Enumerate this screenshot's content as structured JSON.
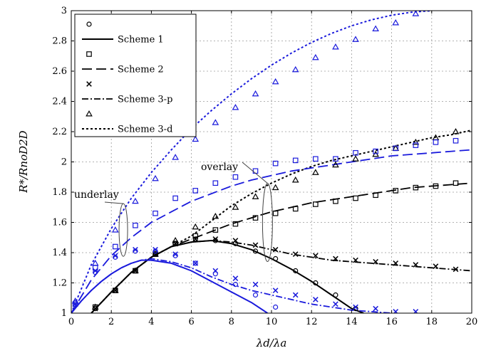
{
  "chart_data": {
    "type": "line",
    "xlabel": "λd/λa",
    "ylabel": "R*/RnoD2D",
    "xlim": [
      0,
      20
    ],
    "ylim": [
      1,
      3
    ],
    "xticks": [
      0,
      2,
      4,
      6,
      8,
      10,
      12,
      14,
      16,
      18,
      20
    ],
    "yticks": [
      1,
      1.2,
      1.4,
      1.6,
      1.8,
      2,
      2.2,
      2.4,
      2.6,
      2.8,
      3
    ],
    "ytick_labels": [
      "1",
      "1.2",
      "1.4",
      "1.6",
      "1.8",
      "2",
      "2.2",
      "2.4",
      "2.6",
      "2.8",
      "3"
    ],
    "grid": true,
    "legend_position": "top-left",
    "legend": [
      {
        "label": "Scheme 1",
        "marker": "circle",
        "line": "solid"
      },
      {
        "label": "Scheme 2",
        "marker": "square",
        "line": "long-dash"
      },
      {
        "label": "Scheme 3-p",
        "marker": "x",
        "line": "dash-dot"
      },
      {
        "label": "Scheme 3-d",
        "marker": "triangle",
        "line": "dotted"
      }
    ],
    "annotations": [
      {
        "text": "underlay",
        "target": [
          2.6,
          1.55
        ]
      },
      {
        "text": "overlay",
        "target": [
          9.8,
          1.6
        ]
      }
    ],
    "colors": {
      "overlay": "#000000",
      "underlay": "#1a1adc"
    },
    "series": [
      {
        "group": "overlay",
        "scheme": "Scheme 1",
        "curve": [
          [
            1,
            1.0
          ],
          [
            2,
            1.14
          ],
          [
            3,
            1.27
          ],
          [
            4,
            1.37
          ],
          [
            5,
            1.44
          ],
          [
            6,
            1.47
          ],
          [
            7,
            1.48
          ],
          [
            8,
            1.46
          ],
          [
            9,
            1.42
          ],
          [
            10,
            1.36
          ],
          [
            11,
            1.29
          ],
          [
            12,
            1.21
          ],
          [
            13,
            1.12
          ],
          [
            14,
            1.03
          ],
          [
            14.6,
            1.0
          ]
        ],
        "points": [
          [
            1.2,
            1.03
          ],
          [
            2.2,
            1.15
          ],
          [
            3.2,
            1.28
          ],
          [
            4.2,
            1.39
          ],
          [
            5.2,
            1.46
          ],
          [
            6.2,
            1.49
          ],
          [
            7.2,
            1.48
          ],
          [
            8.2,
            1.46
          ],
          [
            9.2,
            1.41
          ],
          [
            10.2,
            1.36
          ],
          [
            11.2,
            1.28
          ],
          [
            12.2,
            1.2
          ],
          [
            13.2,
            1.12
          ],
          [
            14.2,
            1.03
          ]
        ]
      },
      {
        "group": "overlay",
        "scheme": "Scheme 2",
        "curve": [
          [
            1,
            1.0
          ],
          [
            2,
            1.14
          ],
          [
            3,
            1.27
          ],
          [
            4,
            1.37
          ],
          [
            5,
            1.44
          ],
          [
            6,
            1.49
          ],
          [
            7,
            1.54
          ],
          [
            8,
            1.59
          ],
          [
            9,
            1.63
          ],
          [
            10,
            1.67
          ],
          [
            11,
            1.7
          ],
          [
            12,
            1.73
          ],
          [
            13,
            1.75
          ],
          [
            14,
            1.77
          ],
          [
            15,
            1.79
          ],
          [
            16,
            1.81
          ],
          [
            17,
            1.83
          ],
          [
            18,
            1.84
          ],
          [
            19,
            1.85
          ],
          [
            20,
            1.86
          ]
        ],
        "points": [
          [
            1.2,
            1.04
          ],
          [
            2.2,
            1.15
          ],
          [
            3.2,
            1.28
          ],
          [
            4.2,
            1.39
          ],
          [
            5.2,
            1.46
          ],
          [
            6.2,
            1.51
          ],
          [
            7.2,
            1.55
          ],
          [
            8.2,
            1.59
          ],
          [
            9.2,
            1.63
          ],
          [
            10.2,
            1.66
          ],
          [
            11.2,
            1.69
          ],
          [
            12.2,
            1.72
          ],
          [
            13.2,
            1.74
          ],
          [
            14.2,
            1.76
          ],
          [
            15.2,
            1.78
          ],
          [
            16.2,
            1.81
          ],
          [
            17.2,
            1.83
          ],
          [
            18.2,
            1.84
          ],
          [
            19.2,
            1.86
          ]
        ]
      },
      {
        "group": "overlay",
        "scheme": "Scheme 3-p",
        "curve": [
          [
            1,
            1.0
          ],
          [
            2,
            1.14
          ],
          [
            3,
            1.27
          ],
          [
            4,
            1.37
          ],
          [
            5,
            1.44
          ],
          [
            6,
            1.47
          ],
          [
            7,
            1.48
          ],
          [
            8,
            1.47
          ],
          [
            9,
            1.45
          ],
          [
            10,
            1.42
          ],
          [
            11,
            1.39
          ],
          [
            12,
            1.37
          ],
          [
            13,
            1.35
          ],
          [
            14,
            1.34
          ],
          [
            15,
            1.33
          ],
          [
            16,
            1.32
          ],
          [
            17,
            1.31
          ],
          [
            18,
            1.3
          ],
          [
            19,
            1.29
          ],
          [
            20,
            1.28
          ]
        ],
        "points": [
          [
            1.2,
            1.03
          ],
          [
            2.2,
            1.15
          ],
          [
            3.2,
            1.28
          ],
          [
            4.2,
            1.39
          ],
          [
            5.2,
            1.46
          ],
          [
            6.2,
            1.49
          ],
          [
            7.2,
            1.49
          ],
          [
            8.2,
            1.48
          ],
          [
            9.2,
            1.45
          ],
          [
            10.2,
            1.42
          ],
          [
            11.2,
            1.39
          ],
          [
            12.2,
            1.38
          ],
          [
            13.2,
            1.36
          ],
          [
            14.2,
            1.35
          ],
          [
            15.2,
            1.34
          ],
          [
            16.2,
            1.33
          ],
          [
            17.2,
            1.32
          ],
          [
            18.2,
            1.31
          ],
          [
            19.2,
            1.29
          ]
        ]
      },
      {
        "group": "overlay",
        "scheme": "Scheme 3-d",
        "curve": [
          [
            1,
            1.0
          ],
          [
            2,
            1.14
          ],
          [
            3,
            1.27
          ],
          [
            4,
            1.37
          ],
          [
            5,
            1.44
          ],
          [
            6,
            1.51
          ],
          [
            7,
            1.61
          ],
          [
            8,
            1.71
          ],
          [
            9,
            1.79
          ],
          [
            10,
            1.86
          ],
          [
            11,
            1.92
          ],
          [
            12,
            1.97
          ],
          [
            13,
            2.01
          ],
          [
            14,
            2.04
          ],
          [
            15,
            2.07
          ],
          [
            16,
            2.1
          ],
          [
            17,
            2.13
          ],
          [
            18,
            2.16
          ],
          [
            19,
            2.18
          ],
          [
            20,
            2.21
          ]
        ],
        "points": [
          [
            1.2,
            1.04
          ],
          [
            2.2,
            1.15
          ],
          [
            3.2,
            1.28
          ],
          [
            4.2,
            1.39
          ],
          [
            5.2,
            1.48
          ],
          [
            6.2,
            1.57
          ],
          [
            7.2,
            1.64
          ],
          [
            8.2,
            1.7
          ],
          [
            9.2,
            1.77
          ],
          [
            10.2,
            1.83
          ],
          [
            11.2,
            1.88
          ],
          [
            12.2,
            1.93
          ],
          [
            13.2,
            1.98
          ],
          [
            14.2,
            2.02
          ],
          [
            15.2,
            2.05
          ],
          [
            16.2,
            2.09
          ],
          [
            17.2,
            2.13
          ],
          [
            18.2,
            2.16
          ],
          [
            19.2,
            2.2
          ]
        ]
      },
      {
        "group": "underlay",
        "scheme": "Scheme 1",
        "curve": [
          [
            0,
            1.0
          ],
          [
            0.5,
            1.08
          ],
          [
            1,
            1.15
          ],
          [
            1.5,
            1.21
          ],
          [
            2,
            1.26
          ],
          [
            2.5,
            1.3
          ],
          [
            3,
            1.33
          ],
          [
            3.5,
            1.35
          ],
          [
            4,
            1.35
          ],
          [
            4.5,
            1.34
          ],
          [
            5,
            1.33
          ],
          [
            6,
            1.28
          ],
          [
            7,
            1.21
          ],
          [
            8,
            1.14
          ],
          [
            9,
            1.07
          ],
          [
            9.8,
            1.0
          ]
        ],
        "points": [
          [
            0.2,
            1.07
          ],
          [
            1.2,
            1.27
          ],
          [
            2.2,
            1.37
          ],
          [
            3.2,
            1.41
          ],
          [
            4.2,
            1.41
          ],
          [
            5.2,
            1.38
          ],
          [
            6.2,
            1.33
          ],
          [
            7.2,
            1.26
          ],
          [
            8.2,
            1.19
          ],
          [
            9.2,
            1.12
          ],
          [
            10.2,
            1.04
          ]
        ]
      },
      {
        "group": "underlay",
        "scheme": "Scheme 2",
        "curve": [
          [
            0,
            1.0
          ],
          [
            1,
            1.22
          ],
          [
            2,
            1.38
          ],
          [
            3,
            1.5
          ],
          [
            4,
            1.6
          ],
          [
            5,
            1.67
          ],
          [
            6,
            1.74
          ],
          [
            7,
            1.79
          ],
          [
            8,
            1.84
          ],
          [
            9,
            1.88
          ],
          [
            10,
            1.91
          ],
          [
            11,
            1.94
          ],
          [
            12,
            1.96
          ],
          [
            13,
            1.98
          ],
          [
            14,
            2.0
          ],
          [
            15,
            2.02
          ],
          [
            16,
            2.04
          ],
          [
            17,
            2.05
          ],
          [
            18,
            2.06
          ],
          [
            19,
            2.07
          ],
          [
            20,
            2.08
          ]
        ],
        "points": [
          [
            0.2,
            1.06
          ],
          [
            1.2,
            1.3
          ],
          [
            2.2,
            1.44
          ],
          [
            3.2,
            1.58
          ],
          [
            4.2,
            1.66
          ],
          [
            5.2,
            1.76
          ],
          [
            6.2,
            1.81
          ],
          [
            7.2,
            1.86
          ],
          [
            8.2,
            1.9
          ],
          [
            9.2,
            1.94
          ],
          [
            10.2,
            1.99
          ],
          [
            11.2,
            2.01
          ],
          [
            12.2,
            2.02
          ],
          [
            13.2,
            2.02
          ],
          [
            14.2,
            2.06
          ],
          [
            15.2,
            2.07
          ],
          [
            16.2,
            2.09
          ],
          [
            17.2,
            2.11
          ],
          [
            18.2,
            2.13
          ],
          [
            19.2,
            2.14
          ]
        ]
      },
      {
        "group": "underlay",
        "scheme": "Scheme 3-p",
        "curve": [
          [
            0,
            1.0
          ],
          [
            0.5,
            1.08
          ],
          [
            1,
            1.15
          ],
          [
            1.5,
            1.21
          ],
          [
            2,
            1.26
          ],
          [
            2.5,
            1.3
          ],
          [
            3,
            1.33
          ],
          [
            3.5,
            1.35
          ],
          [
            4,
            1.36
          ],
          [
            5,
            1.34
          ],
          [
            6,
            1.3
          ],
          [
            7,
            1.24
          ],
          [
            8,
            1.19
          ],
          [
            9,
            1.15
          ],
          [
            10,
            1.12
          ],
          [
            11,
            1.09
          ],
          [
            12,
            1.06
          ],
          [
            13,
            1.04
          ],
          [
            14,
            1.02
          ],
          [
            15,
            1.01
          ],
          [
            16,
            1.0
          ]
        ],
        "points": [
          [
            0.2,
            1.06
          ],
          [
            1.2,
            1.28
          ],
          [
            2.2,
            1.38
          ],
          [
            3.2,
            1.42
          ],
          [
            4.2,
            1.42
          ],
          [
            5.2,
            1.39
          ],
          [
            6.2,
            1.33
          ],
          [
            7.2,
            1.28
          ],
          [
            8.2,
            1.23
          ],
          [
            9.2,
            1.19
          ],
          [
            10.2,
            1.15
          ],
          [
            11.2,
            1.12
          ],
          [
            12.2,
            1.09
          ],
          [
            13.2,
            1.06
          ],
          [
            14.2,
            1.04
          ],
          [
            15.2,
            1.03
          ],
          [
            16.2,
            1.01
          ],
          [
            17.2,
            1.01
          ]
        ]
      },
      {
        "group": "underlay",
        "scheme": "Scheme 3-d",
        "curve": [
          [
            0,
            1.0
          ],
          [
            1,
            1.32
          ],
          [
            2,
            1.56
          ],
          [
            3,
            1.76
          ],
          [
            4,
            1.93
          ],
          [
            5,
            2.08
          ],
          [
            6,
            2.22
          ],
          [
            7,
            2.34
          ],
          [
            8,
            2.45
          ],
          [
            9,
            2.55
          ],
          [
            10,
            2.64
          ],
          [
            11,
            2.72
          ],
          [
            12,
            2.79
          ],
          [
            13,
            2.85
          ],
          [
            14,
            2.9
          ],
          [
            15,
            2.94
          ],
          [
            16,
            2.97
          ],
          [
            17,
            2.99
          ],
          [
            18,
            3.0
          ]
        ],
        "points": [
          [
            0.2,
            1.08
          ],
          [
            1.2,
            1.33
          ],
          [
            2.2,
            1.55
          ],
          [
            3.2,
            1.74
          ],
          [
            4.2,
            1.89
          ],
          [
            5.2,
            2.03
          ],
          [
            6.2,
            2.15
          ],
          [
            7.2,
            2.26
          ],
          [
            8.2,
            2.36
          ],
          [
            9.2,
            2.45
          ],
          [
            10.2,
            2.53
          ],
          [
            11.2,
            2.61
          ],
          [
            12.2,
            2.69
          ],
          [
            13.2,
            2.76
          ],
          [
            14.2,
            2.81
          ],
          [
            15.2,
            2.88
          ],
          [
            16.2,
            2.92
          ],
          [
            17.2,
            2.98
          ]
        ]
      }
    ]
  }
}
